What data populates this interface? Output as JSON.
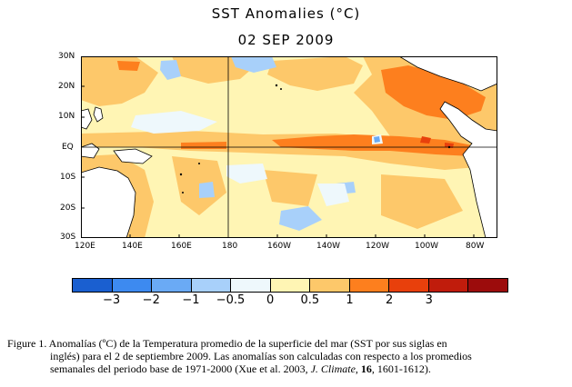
{
  "title": "SST Anomalies (°C)",
  "date": "02 SEP 2009",
  "map": {
    "lat_labels": [
      "30N",
      "20N",
      "10N",
      "EQ",
      "10S",
      "20S",
      "30S"
    ],
    "lon_labels": [
      "120E",
      "140E",
      "160E",
      "180",
      "160W",
      "140W",
      "120W",
      "100W",
      "80W"
    ]
  },
  "legend": {
    "colors": [
      "#1a5fd0",
      "#3d8af0",
      "#6aaaf5",
      "#a8d0fa",
      "#eef8fc",
      "#fff5b4",
      "#fdc86a",
      "#fd7f1e",
      "#e8400c",
      "#c01c0c",
      "#9c0c0c"
    ],
    "labels": [
      "−3",
      "−2",
      "−1",
      "−0.5",
      "0",
      "0.5",
      "1",
      "2",
      "3"
    ]
  },
  "caption": {
    "line1": "Figure 1. Anomalías (ºC) de la Temperatura promedio de la superficie del mar (SST por sus siglas en",
    "line2": "inglés) para el 2 de septiembre 2009. Las anomalías son calculadas con respecto a los promedios",
    "line3_a": "semanales del periodo base de 1971-2000  (Xue et al. 2003, ",
    "line3_journal": "J. Climate",
    "line3_b": ", ",
    "line3_vol": "16",
    "line3_c": ", 1601-1612)."
  }
}
